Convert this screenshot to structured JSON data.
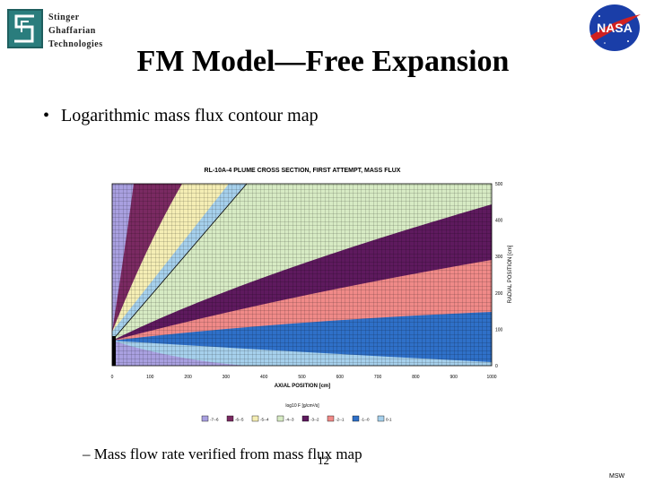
{
  "logo": {
    "lines": [
      "Stinger",
      "Ghaffarian",
      "Technologies"
    ]
  },
  "nasa_logo": {
    "text": "NASA"
  },
  "title": "FM Model—Free Expansion",
  "bullet": "Logarithmic mass flux contour map",
  "chart_data": {
    "type": "heatmap",
    "title": "RL-10A-4 PLUME CROSS SECTION, FIRST ATTEMPT, MASS FLUX",
    "xlabel": "AXIAL POSITION [cm]",
    "ylabel": "RADIAL POSITION [cm]",
    "x_ticks": [
      "0",
      "100",
      "200",
      "300",
      "400",
      "500",
      "600",
      "700",
      "800",
      "900",
      "1000"
    ],
    "y_ticks": [
      "0",
      "100",
      "200",
      "300",
      "400",
      "500"
    ],
    "xlim": [
      0,
      1000
    ],
    "ylim": [
      0,
      500
    ],
    "legend_title": "log10 F [g/cm²/s]",
    "legend": [
      {
        "label": "-7--6",
        "color": "#a9a0e0"
      },
      {
        "label": "-6--5",
        "color": "#7a2a62"
      },
      {
        "label": "-5--4",
        "color": "#f5eeb5"
      },
      {
        "label": "-4--3",
        "color": "#d7ebc4"
      },
      {
        "label": "-3--2",
        "color": "#5e1a5e"
      },
      {
        "label": "-2--1",
        "color": "#f08a88"
      },
      {
        "label": "-1--0",
        "color": "#2f70c8"
      },
      {
        "label": "0-1",
        "color": "#a6d0ec"
      }
    ]
  },
  "sub_bullet": "Mass flow rate verified from mass flux map",
  "page_number": "12",
  "footer": "MSW"
}
